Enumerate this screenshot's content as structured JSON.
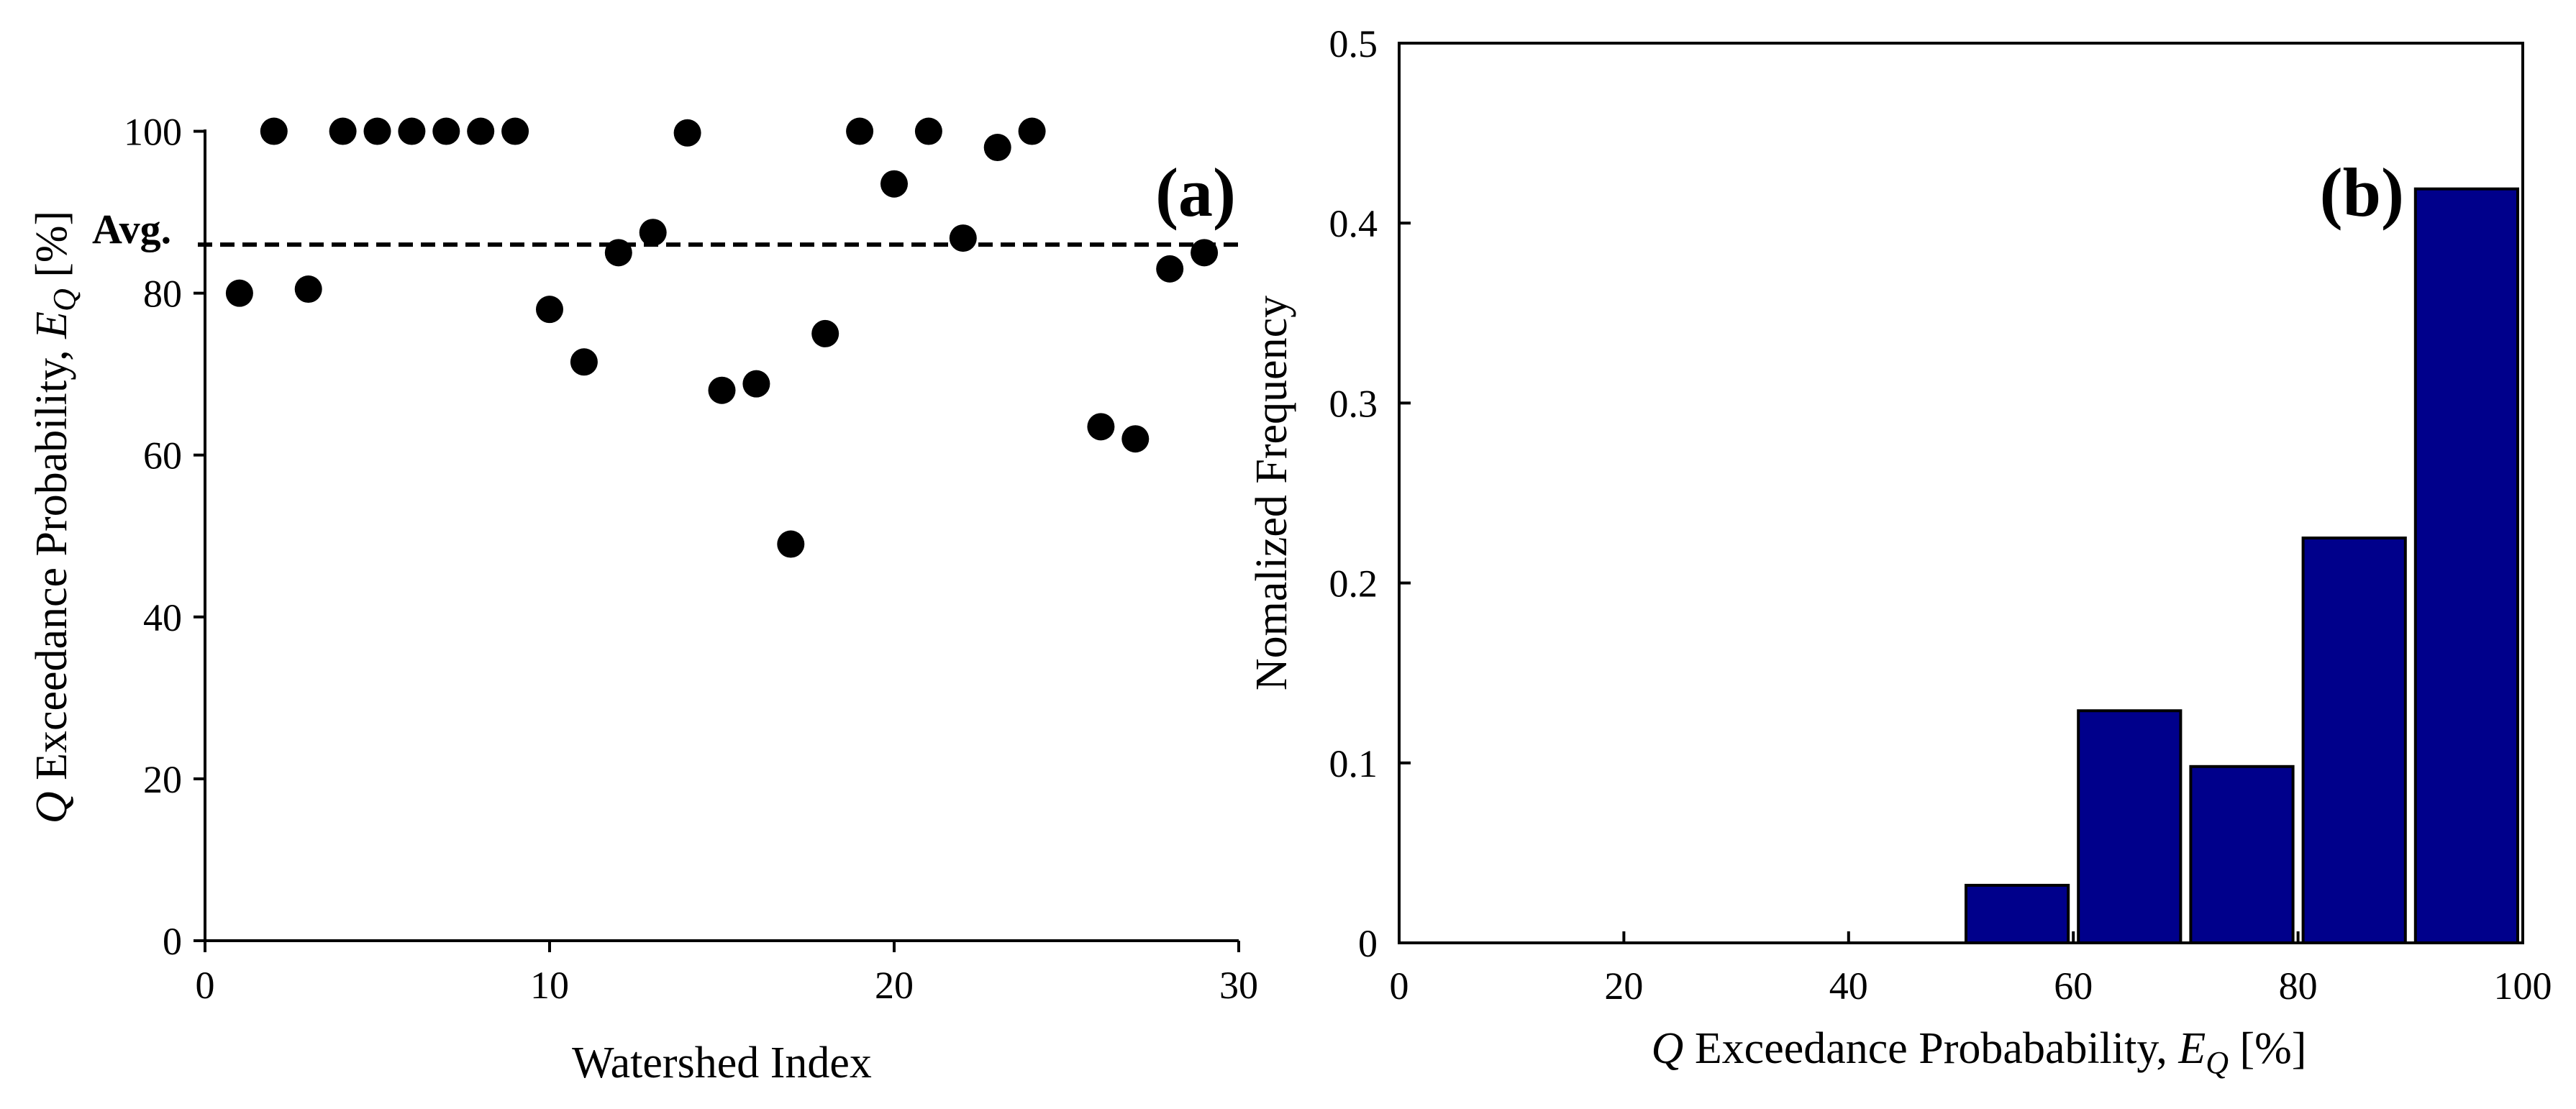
{
  "chart_data": [
    {
      "type": "scatter",
      "panel_label": "(a)",
      "xlabel": "Watershed Index",
      "ylabel_prefix": "Q",
      "ylabel_middle": " Exceedance Probability, ",
      "ylabel_var": "E",
      "ylabel_sub": "Q",
      "ylabel_suffix": " [%]",
      "xlim": [
        0,
        30
      ],
      "ylim": [
        0,
        110
      ],
      "xticks": [
        0,
        10,
        20,
        30
      ],
      "yticks": [
        0,
        20,
        40,
        60,
        80,
        100
      ],
      "average_line": {
        "label": "Avg.",
        "value": 86
      },
      "points": [
        [
          1,
          80
        ],
        [
          2,
          100
        ],
        [
          3,
          80.5
        ],
        [
          4,
          100
        ],
        [
          5,
          100
        ],
        [
          6,
          100
        ],
        [
          7,
          100
        ],
        [
          8,
          100
        ],
        [
          9,
          100
        ],
        [
          10,
          78
        ],
        [
          11,
          71.5
        ],
        [
          12,
          85
        ],
        [
          13,
          87.5
        ],
        [
          14,
          99.8
        ],
        [
          15,
          68
        ],
        [
          16,
          68.8
        ],
        [
          17,
          49
        ],
        [
          18,
          75
        ],
        [
          19,
          100
        ],
        [
          20,
          93.5
        ],
        [
          21,
          100
        ],
        [
          22,
          86.8
        ],
        [
          23,
          98
        ],
        [
          24,
          100
        ],
        [
          26,
          63.5
        ],
        [
          27,
          62
        ],
        [
          28,
          83
        ],
        [
          29,
          85
        ]
      ],
      "marker_color": "#000000"
    },
    {
      "type": "bar",
      "panel_label": "(b)",
      "ylabel": "Nomalized Frequency",
      "xlabel_prefix": "Q",
      "xlabel_middle": " Exceedance Probabability, ",
      "xlabel_var": "E",
      "xlabel_sub": "Q",
      "xlabel_suffix": " [%]",
      "xlim": [
        0,
        100
      ],
      "ylim": [
        0,
        0.5
      ],
      "xticks": [
        0,
        20,
        40,
        60,
        80,
        100
      ],
      "yticks": [
        0,
        0.1,
        0.2,
        0.3,
        0.4,
        0.5
      ],
      "ytick_labels": [
        "0",
        "0.1",
        "0.2",
        "0.3",
        "0.4",
        "0.5"
      ],
      "bins": [
        {
          "start": 50,
          "end": 60,
          "value": 0.032
        },
        {
          "start": 60,
          "end": 70,
          "value": 0.129
        },
        {
          "start": 70,
          "end": 80,
          "value": 0.098
        },
        {
          "start": 80,
          "end": 90,
          "value": 0.225
        },
        {
          "start": 90,
          "end": 100,
          "value": 0.419
        }
      ],
      "bar_color": "#00008B"
    }
  ]
}
